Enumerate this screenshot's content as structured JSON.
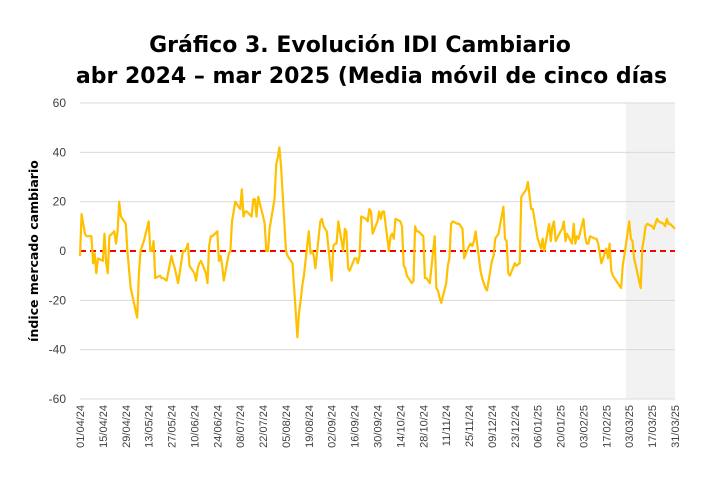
{
  "title": {
    "line1": "Gráfico 3. Evolución IDI Cambiario",
    "line2": "abr 2024 – mar 2025 (Media móvil de cinco días"
  },
  "chart_data": {
    "type": "line",
    "title": "Gráfico 3. Evolución IDI Cambiario abr 2024 – mar 2025 (Media móvil de cinco días",
    "xlabel": "",
    "ylabel": "índice mercado cambiario",
    "ylim": [
      -60,
      60
    ],
    "y_ticks": [
      -60,
      -40,
      -20,
      0,
      20,
      40,
      60
    ],
    "x_tick_labels": [
      "01/04/24",
      "15/04/24",
      "29/04/24",
      "13/05/24",
      "27/05/24",
      "10/06/24",
      "24/06/24",
      "08/07/24",
      "22/07/24",
      "05/08/24",
      "19/08/24",
      "02/09/24",
      "16/09/24",
      "30/09/24",
      "14/10/24",
      "28/10/24",
      "11/11/24",
      "25/11/24",
      "09/12/24",
      "23/12/24",
      "06/01/25",
      "20/01/25",
      "03/02/25",
      "17/02/25",
      "03/03/25",
      "17/03/25",
      "31/03/25"
    ],
    "grid": "horizontal",
    "reference_line": {
      "y": 0,
      "color": "#ff0000",
      "style": "dashed"
    },
    "shaded_region": {
      "from": "01/03/25",
      "to": "31/03/25",
      "color": "#f2f2f2"
    },
    "series": [
      {
        "color": "#ffc000",
        "points": [
          [
            "01/04/24",
            -2
          ],
          [
            "02/04/24",
            15
          ],
          [
            "04/04/24",
            7
          ],
          [
            "05/04/24",
            6
          ],
          [
            "08/04/24",
            6
          ],
          [
            "09/04/24",
            -5
          ],
          [
            "10/04/24",
            -1
          ],
          [
            "11/04/24",
            -9
          ],
          [
            "12/04/24",
            -3
          ],
          [
            "15/04/24",
            -4
          ],
          [
            "16/04/24",
            7
          ],
          [
            "17/04/24",
            -5
          ],
          [
            "18/04/24",
            -9
          ],
          [
            "19/04/24",
            6
          ],
          [
            "22/04/24",
            8
          ],
          [
            "23/04/24",
            3
          ],
          [
            "24/04/24",
            8
          ],
          [
            "25/04/24",
            20
          ],
          [
            "26/04/24",
            14
          ],
          [
            "29/04/24",
            11
          ],
          [
            "30/04/24",
            0
          ],
          [
            "02/05/24",
            -15
          ],
          [
            "03/05/24",
            -18
          ],
          [
            "06/05/24",
            -27
          ],
          [
            "07/05/24",
            -10
          ],
          [
            "08/05/24",
            0
          ],
          [
            "09/05/24",
            2
          ],
          [
            "10/05/24",
            4
          ],
          [
            "13/05/24",
            12
          ],
          [
            "14/05/24",
            0
          ],
          [
            "15/05/24",
            0
          ],
          [
            "16/05/24",
            4
          ],
          [
            "17/05/24",
            -11
          ],
          [
            "20/05/24",
            -10
          ],
          [
            "21/05/24",
            -11
          ],
          [
            "22/05/24",
            -11
          ],
          [
            "24/05/24",
            -12
          ],
          [
            "27/05/24",
            -2
          ],
          [
            "28/05/24",
            -5
          ],
          [
            "29/05/24",
            -7
          ],
          [
            "31/05/24",
            -13
          ],
          [
            "03/06/24",
            0
          ],
          [
            "04/06/24",
            0
          ],
          [
            "05/06/24",
            1
          ],
          [
            "06/06/24",
            3
          ],
          [
            "07/06/24",
            -6
          ],
          [
            "10/06/24",
            -9
          ],
          [
            "11/06/24",
            -12
          ],
          [
            "12/06/24",
            -7
          ],
          [
            "13/06/24",
            -5
          ],
          [
            "14/06/24",
            -4
          ],
          [
            "17/06/24",
            -9
          ],
          [
            "18/06/24",
            -13
          ],
          [
            "19/06/24",
            2
          ],
          [
            "20/06/24",
            6
          ],
          [
            "21/06/24",
            6
          ],
          [
            "24/06/24",
            8
          ],
          [
            "25/06/24",
            -4
          ],
          [
            "26/06/24",
            -2
          ],
          [
            "27/06/24",
            -6
          ],
          [
            "28/06/24",
            -12
          ],
          [
            "01/07/24",
            -1
          ],
          [
            "02/07/24",
            0
          ],
          [
            "03/07/24",
            12
          ],
          [
            "05/07/24",
            20
          ],
          [
            "08/07/24",
            17
          ],
          [
            "09/07/24",
            25
          ],
          [
            "10/07/24",
            14
          ],
          [
            "11/07/24",
            16
          ],
          [
            "12/07/24",
            16
          ],
          [
            "15/07/24",
            14
          ],
          [
            "16/07/24",
            21
          ],
          [
            "17/07/24",
            21
          ],
          [
            "18/07/24",
            14
          ],
          [
            "19/07/24",
            22
          ],
          [
            "22/07/24",
            14
          ],
          [
            "23/07/24",
            11
          ],
          [
            "24/07/24",
            0
          ],
          [
            "25/07/24",
            0
          ],
          [
            "26/07/24",
            9
          ],
          [
            "29/07/24",
            21
          ],
          [
            "30/07/24",
            35
          ],
          [
            "31/07/24",
            38
          ],
          [
            "01/08/24",
            42
          ],
          [
            "02/08/24",
            34
          ],
          [
            "05/08/24",
            0
          ],
          [
            "06/08/24",
            -2
          ],
          [
            "07/08/24",
            -3
          ],
          [
            "08/08/24",
            -4
          ],
          [
            "09/08/24",
            -5
          ],
          [
            "12/08/24",
            -35
          ],
          [
            "13/08/24",
            -25
          ],
          [
            "14/08/24",
            -20
          ],
          [
            "15/08/24",
            -14
          ],
          [
            "16/08/24",
            -10
          ],
          [
            "19/08/24",
            8
          ],
          [
            "20/08/24",
            -1
          ],
          [
            "21/08/24",
            0
          ],
          [
            "22/08/24",
            -2
          ],
          [
            "23/08/24",
            -7
          ],
          [
            "26/08/24",
            12
          ],
          [
            "27/08/24",
            13
          ],
          [
            "28/08/24",
            10
          ],
          [
            "29/08/24",
            9
          ],
          [
            "30/08/24",
            8
          ],
          [
            "02/09/24",
            -12
          ],
          [
            "03/09/24",
            2
          ],
          [
            "04/09/24",
            3
          ],
          [
            "05/09/24",
            3
          ],
          [
            "06/09/24",
            12
          ],
          [
            "09/09/24",
            0
          ],
          [
            "10/09/24",
            9
          ],
          [
            "11/09/24",
            8
          ],
          [
            "12/09/24",
            -7
          ],
          [
            "13/09/24",
            -8
          ],
          [
            "16/09/24",
            -3
          ],
          [
            "17/09/24",
            -3
          ],
          [
            "18/09/24",
            -5
          ],
          [
            "19/09/24",
            -2
          ],
          [
            "20/09/24",
            14
          ],
          [
            "23/09/24",
            13
          ],
          [
            "24/09/24",
            12
          ],
          [
            "25/09/24",
            17
          ],
          [
            "26/09/24",
            16
          ],
          [
            "27/09/24",
            7
          ],
          [
            "30/09/24",
            12
          ],
          [
            "01/10/24",
            16
          ],
          [
            "02/10/24",
            13
          ],
          [
            "03/10/24",
            16
          ],
          [
            "04/10/24",
            16
          ],
          [
            "07/10/24",
            0
          ],
          [
            "08/10/24",
            6
          ],
          [
            "09/10/24",
            7
          ],
          [
            "10/10/24",
            5
          ],
          [
            "11/10/24",
            13
          ],
          [
            "14/10/24",
            12
          ],
          [
            "15/10/24",
            10
          ],
          [
            "16/10/24",
            -6
          ],
          [
            "17/10/24",
            -7
          ],
          [
            "18/10/24",
            -10
          ],
          [
            "21/10/24",
            -13
          ],
          [
            "22/10/24",
            -12
          ],
          [
            "23/10/24",
            10
          ],
          [
            "24/10/24",
            8
          ],
          [
            "25/10/24",
            8
          ],
          [
            "28/10/24",
            6
          ],
          [
            "29/10/24",
            -11
          ],
          [
            "30/10/24",
            -11
          ],
          [
            "31/10/24",
            -12
          ],
          [
            "01/11/24",
            -13
          ],
          [
            "04/11/24",
            6
          ],
          [
            "05/11/24",
            -15
          ],
          [
            "06/11/24",
            -16
          ],
          [
            "07/11/24",
            -19
          ],
          [
            "08/11/24",
            -21
          ],
          [
            "11/11/24",
            -13
          ],
          [
            "12/11/24",
            -6
          ],
          [
            "13/11/24",
            -3
          ],
          [
            "14/11/24",
            11
          ],
          [
            "15/11/24",
            12
          ],
          [
            "18/11/24",
            11
          ],
          [
            "19/11/24",
            11
          ],
          [
            "20/11/24",
            10
          ],
          [
            "21/11/24",
            9
          ],
          [
            "22/11/24",
            -3
          ],
          [
            "25/11/24",
            2
          ],
          [
            "26/11/24",
            3
          ],
          [
            "27/11/24",
            2
          ],
          [
            "28/11/24",
            4
          ],
          [
            "29/11/24",
            8
          ],
          [
            "02/12/24",
            -8
          ],
          [
            "03/12/24",
            -11
          ],
          [
            "04/12/24",
            -13
          ],
          [
            "05/12/24",
            -15
          ],
          [
            "06/12/24",
            -16
          ],
          [
            "09/12/24",
            -4
          ],
          [
            "10/12/24",
            -2
          ],
          [
            "11/12/24",
            5
          ],
          [
            "12/12/24",
            6
          ],
          [
            "13/12/24",
            7
          ],
          [
            "16/12/24",
            18
          ],
          [
            "17/12/24",
            5
          ],
          [
            "18/12/24",
            4
          ],
          [
            "19/12/24",
            -9
          ],
          [
            "20/12/24",
            -10
          ],
          [
            "23/12/24",
            -5
          ],
          [
            "24/12/24",
            -6
          ],
          [
            "26/12/24",
            -5
          ],
          [
            "27/12/24",
            22
          ],
          [
            "30/12/24",
            25
          ],
          [
            "31/12/24",
            28
          ],
          [
            "02/01/25",
            17
          ],
          [
            "03/01/25",
            17
          ],
          [
            "06/01/25",
            5
          ],
          [
            "07/01/25",
            3
          ],
          [
            "08/01/25",
            1
          ],
          [
            "09/01/25",
            5
          ],
          [
            "10/01/25",
            0
          ],
          [
            "13/01/25",
            11
          ],
          [
            "14/01/25",
            4
          ],
          [
            "15/01/25",
            10
          ],
          [
            "16/01/25",
            12
          ],
          [
            "17/01/25",
            4
          ],
          [
            "20/01/25",
            8
          ],
          [
            "21/01/25",
            9
          ],
          [
            "22/01/25",
            12
          ],
          [
            "23/01/25",
            4
          ],
          [
            "24/01/25",
            7
          ],
          [
            "27/01/25",
            3
          ],
          [
            "28/01/25",
            11
          ],
          [
            "29/01/25",
            3
          ],
          [
            "30/01/25",
            6
          ],
          [
            "31/01/25",
            5
          ],
          [
            "03/02/25",
            13
          ],
          [
            "04/02/25",
            6
          ],
          [
            "05/02/25",
            3
          ],
          [
            "06/02/25",
            3
          ],
          [
            "07/02/25",
            6
          ],
          [
            "10/02/25",
            5
          ],
          [
            "11/02/25",
            5
          ],
          [
            "12/02/25",
            3
          ],
          [
            "13/02/25",
            -1
          ],
          [
            "14/02/25",
            -5
          ],
          [
            "17/02/25",
            1
          ],
          [
            "18/02/25",
            -3
          ],
          [
            "19/02/25",
            3
          ],
          [
            "20/02/25",
            -8
          ],
          [
            "21/02/25",
            -10
          ],
          [
            "24/02/25",
            -13
          ],
          [
            "25/02/25",
            -14
          ],
          [
            "26/02/25",
            -15
          ],
          [
            "27/02/25",
            -6
          ],
          [
            "28/02/25",
            -2
          ],
          [
            "03/03/25",
            12
          ],
          [
            "04/03/25",
            5
          ],
          [
            "05/03/25",
            4
          ],
          [
            "06/03/25",
            -3
          ],
          [
            "07/03/25",
            -6
          ],
          [
            "10/03/25",
            -15
          ],
          [
            "11/03/25",
            1
          ],
          [
            "12/03/25",
            5
          ],
          [
            "13/03/25",
            10
          ],
          [
            "14/03/25",
            11
          ],
          [
            "17/03/25",
            10
          ],
          [
            "18/03/25",
            9
          ],
          [
            "19/03/25",
            11
          ],
          [
            "20/03/25",
            13
          ],
          [
            "21/03/25",
            12
          ],
          [
            "24/03/25",
            11
          ],
          [
            "25/03/25",
            10
          ],
          [
            "26/03/25",
            13
          ],
          [
            "27/03/25",
            11
          ],
          [
            "28/03/25",
            11
          ],
          [
            "31/03/25",
            9
          ]
        ]
      }
    ]
  }
}
